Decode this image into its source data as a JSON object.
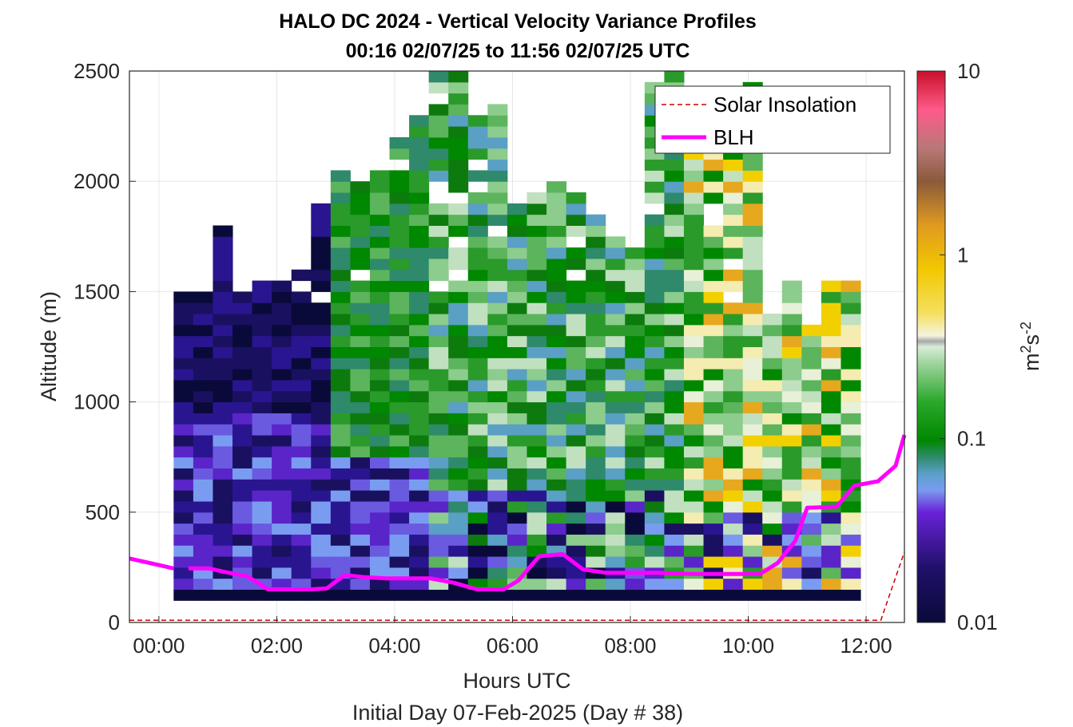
{
  "chart_data": {
    "type": "heatmap",
    "title": "HALO DC 2024 - Vertical Velocity Variance Profiles",
    "subtitle": "00:16 02/07/25 to 11:56 02/07/25  UTC",
    "xlabel": "Hours UTC",
    "xlabel2": "Initial Day 07-Feb-2025 (Day # 38)",
    "ylabel": "Altitude (m)",
    "xlim": [
      -0.5,
      12.65
    ],
    "ylim": [
      0,
      2500
    ],
    "x_ticks": [
      0,
      2,
      4,
      6,
      8,
      10,
      12
    ],
    "x_tick_labels": [
      "00:00",
      "02:00",
      "04:00",
      "06:00",
      "08:00",
      "10:00",
      "12:00"
    ],
    "y_ticks": [
      0,
      500,
      1000,
      1500,
      2000,
      2500
    ],
    "y_tick_labels": [
      "0",
      "500",
      "1000",
      "1500",
      "2000",
      "2500"
    ],
    "grid": true,
    "colorbar": {
      "label_base": "m",
      "label_exp1": "2",
      "label_mid": "s",
      "label_exp2": "-2",
      "scale": "log",
      "range": [
        0.01,
        10
      ],
      "ticks": [
        0.01,
        0.1,
        1,
        10
      ],
      "tick_labels": [
        "0.01",
        "0.1",
        "1",
        "10"
      ]
    },
    "legend": {
      "placement": "top-right",
      "entries": [
        {
          "label": "Solar Insolation",
          "color": "#cc0000",
          "style": "dashed"
        },
        {
          "label": "BLH",
          "color": "#ff00ff",
          "style": "solid"
        }
      ]
    },
    "blh_series": {
      "name": "BLH",
      "x": [
        -0.5,
        0.0,
        0.25,
        null,
        0.5,
        0.85,
        1.1,
        1.5,
        1.85,
        2.2,
        2.6,
        2.85,
        3.15,
        3.5,
        3.85,
        4.2,
        4.6,
        5.0,
        5.4,
        5.85,
        6.1,
        6.45,
        6.85,
        7.2,
        7.6,
        8.0,
        8.5,
        9.0,
        9.5,
        10.0,
        10.2,
        10.5,
        10.8,
        11.0,
        11.5,
        11.8,
        12.2,
        12.5,
        12.65
      ],
      "y": [
        290,
        260,
        245,
        null,
        245,
        245,
        230,
        210,
        150,
        150,
        150,
        155,
        215,
        205,
        200,
        200,
        200,
        180,
        150,
        150,
        190,
        300,
        310,
        240,
        225,
        225,
        225,
        220,
        220,
        220,
        220,
        270,
        370,
        520,
        525,
        620,
        640,
        710,
        850
      ]
    },
    "solar_insolation": {
      "name": "Solar Insolation",
      "x": [
        -0.5,
        12.25,
        12.65
      ],
      "y": [
        10,
        10,
        320
      ]
    },
    "heatmap_bins": {
      "x_start": 0.25,
      "bin_width_hours": 0.333,
      "num_columns": 35,
      "altitude_bin_m": 50,
      "max_altitude_m": 2500
    },
    "colors": {
      "blh": "#ff00ff",
      "solar": "#cc0000",
      "plot_bg": "#ffffff",
      "grid": "#e6e6e6"
    }
  }
}
